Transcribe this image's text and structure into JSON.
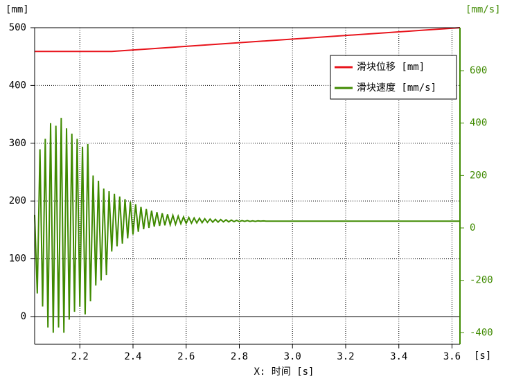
{
  "chart_data": {
    "type": "line",
    "ylabel": "[mm]",
    "y2label": "[mm/s]",
    "xlabel": "X: 时间 [s]",
    "x_unit": "[s]",
    "xlim": [
      2.03,
      3.63
    ],
    "ylim": [
      -48,
      500
    ],
    "y2lim": [
      -444,
      764
    ],
    "xticks": [
      2.2,
      2.4,
      2.6,
      2.8,
      {
        "value": 3,
        "label": "3.0"
      },
      3.2,
      3.4,
      3.6
    ],
    "yticks": [
      0,
      100,
      200,
      300,
      400,
      500
    ],
    "y2ticks": [
      -400,
      -200,
      0,
      200,
      400,
      600
    ],
    "grid": true,
    "legend": "upper right",
    "series": [
      {
        "name": "滑块位移 [mm]",
        "color": "#e8141c",
        "x": [
          2.03,
          2.32,
          3.63
        ],
        "values": [
          459,
          459,
          500
        ]
      },
      {
        "name": "滑块速度 [mm/s]",
        "color": "#3f8a00",
        "axis": "y2",
        "x": [
          2.03,
          2.04,
          2.05,
          2.06,
          2.07,
          2.08,
          2.09,
          2.1,
          2.11,
          2.12,
          2.13,
          2.14,
          2.15,
          2.16,
          2.17,
          2.18,
          2.19,
          2.2,
          2.21,
          2.22,
          2.23,
          2.24,
          2.25,
          2.26,
          2.27,
          2.28,
          2.29,
          2.3,
          2.31,
          2.32,
          2.33,
          2.34,
          2.35,
          2.36,
          2.37,
          2.38,
          2.39,
          2.4,
          2.41,
          2.42,
          2.43,
          2.44,
          2.45,
          2.46,
          2.47,
          2.48,
          2.49,
          2.5,
          2.51,
          2.52,
          2.53,
          2.54,
          2.55,
          2.56,
          2.57,
          2.58,
          2.59,
          2.6,
          2.61,
          2.62,
          2.63,
          2.64,
          2.65,
          2.66,
          2.67,
          2.68,
          2.69,
          2.7,
          2.71,
          2.72,
          2.73,
          2.74,
          2.75,
          2.76,
          2.77,
          2.78,
          2.79,
          2.8,
          2.81,
          2.82,
          2.83,
          2.84,
          2.85,
          2.86,
          2.87,
          2.88,
          2.89,
          2.9,
          3.0,
          3.2,
          3.4,
          3.63
        ],
        "values": [
          50,
          -250,
          300,
          -300,
          340,
          -380,
          400,
          -400,
          390,
          -380,
          420,
          -400,
          380,
          -350,
          360,
          -320,
          340,
          -300,
          310,
          -330,
          320,
          -280,
          200,
          -220,
          180,
          -200,
          150,
          -180,
          140,
          -90,
          130,
          -70,
          120,
          -60,
          110,
          -40,
          100,
          -25,
          90,
          -15,
          80,
          -5,
          72,
          0,
          66,
          5,
          60,
          8,
          56,
          10,
          52,
          12,
          48,
          14,
          45,
          16,
          42,
          17,
          40,
          18,
          38,
          19,
          37,
          20,
          35,
          21,
          34,
          22,
          33,
          22,
          32,
          23,
          31,
          23,
          30,
          24,
          29,
          24,
          28,
          25,
          28,
          25,
          27,
          25,
          27,
          26,
          27,
          26,
          26,
          26,
          26,
          26
        ]
      }
    ]
  }
}
